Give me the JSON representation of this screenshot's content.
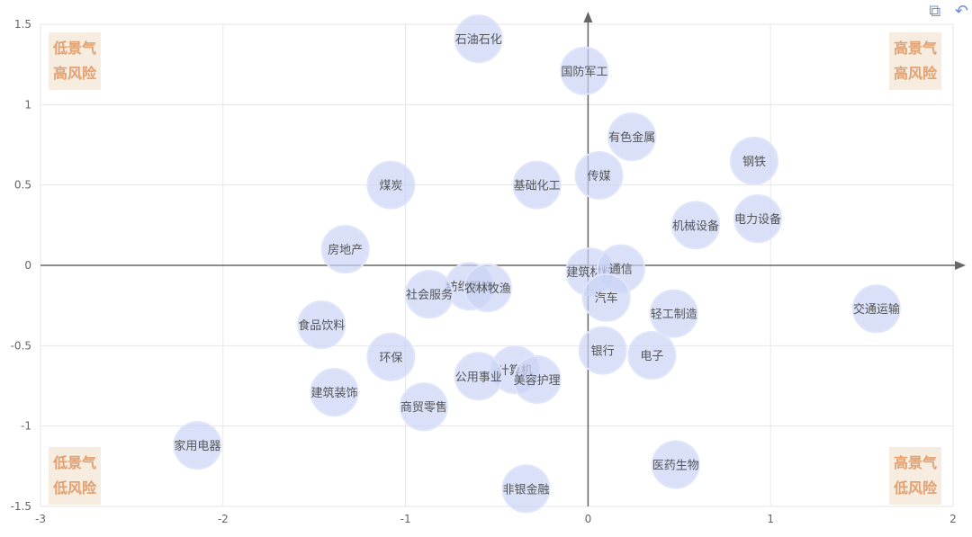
{
  "toolbar": {
    "icons": [
      "crop-icon",
      "reset-icon"
    ]
  },
  "quadrants": {
    "top_left": [
      "低景气",
      "高风险"
    ],
    "top_right": [
      "高景气",
      "高风险"
    ],
    "bottom_left": [
      "低景气",
      "低风险"
    ],
    "bottom_right": [
      "高景气",
      "低风险"
    ]
  },
  "colors": {
    "bubble_fill": "#c9d3f5",
    "bubble_label": "#555555",
    "axis": "#666666",
    "grid": "#e6e6e6",
    "quadrant_text": "#e3a071",
    "quadrant_bg": "#f6ecdf"
  },
  "chart_data": {
    "type": "scatter",
    "xlim": [
      -3,
      2
    ],
    "ylim": [
      -1.5,
      1.5
    ],
    "xticks": [
      "-3",
      "-2",
      "-1",
      "0",
      "1",
      "2"
    ],
    "yticks": [
      "1.5",
      "1",
      "0.5",
      "0",
      "-0.5",
      "-1",
      "-1.5"
    ],
    "grid": true,
    "points": [
      {
        "label": "石油石化",
        "x": -0.6,
        "y": 1.41
      },
      {
        "label": "国防军工",
        "x": -0.02,
        "y": 1.21
      },
      {
        "label": "有色金属",
        "x": 0.24,
        "y": 0.8
      },
      {
        "label": "钢铁",
        "x": 0.91,
        "y": 0.65
      },
      {
        "label": "传媒",
        "x": 0.06,
        "y": 0.56
      },
      {
        "label": "基础化工",
        "x": -0.28,
        "y": 0.5
      },
      {
        "label": "煤炭",
        "x": -1.08,
        "y": 0.5
      },
      {
        "label": "机械设备",
        "x": 0.59,
        "y": 0.25
      },
      {
        "label": "电力设备",
        "x": 0.93,
        "y": 0.29
      },
      {
        "label": "房地产",
        "x": -1.33,
        "y": 0.1
      },
      {
        "label": "建筑材料",
        "x": 0.01,
        "y": -0.04
      },
      {
        "label": "通信",
        "x": 0.18,
        "y": -0.02
      },
      {
        "label": "纺织服饰",
        "x": -0.65,
        "y": -0.13
      },
      {
        "label": "农林牧渔",
        "x": -0.55,
        "y": -0.14
      },
      {
        "label": "社会服务",
        "x": -0.87,
        "y": -0.18
      },
      {
        "label": "汽车",
        "x": 0.1,
        "y": -0.2
      },
      {
        "label": "轻工制造",
        "x": 0.47,
        "y": -0.3
      },
      {
        "label": "交通运输",
        "x": 1.58,
        "y": -0.27
      },
      {
        "label": "食品饮料",
        "x": -1.46,
        "y": -0.37
      },
      {
        "label": "银行",
        "x": 0.08,
        "y": -0.53
      },
      {
        "label": "电子",
        "x": 0.35,
        "y": -0.56
      },
      {
        "label": "环保",
        "x": -1.08,
        "y": -0.57
      },
      {
        "label": "计算机",
        "x": -0.4,
        "y": -0.65
      },
      {
        "label": "公用事业",
        "x": -0.6,
        "y": -0.69
      },
      {
        "label": "美容护理",
        "x": -0.28,
        "y": -0.71
      },
      {
        "label": "建筑装饰",
        "x": -1.39,
        "y": -0.79
      },
      {
        "label": "商贸零售",
        "x": -0.9,
        "y": -0.88
      },
      {
        "label": "家用电器",
        "x": -2.14,
        "y": -1.12
      },
      {
        "label": "医药生物",
        "x": 0.48,
        "y": -1.24
      },
      {
        "label": "非银金融",
        "x": -0.34,
        "y": -1.39
      }
    ]
  }
}
